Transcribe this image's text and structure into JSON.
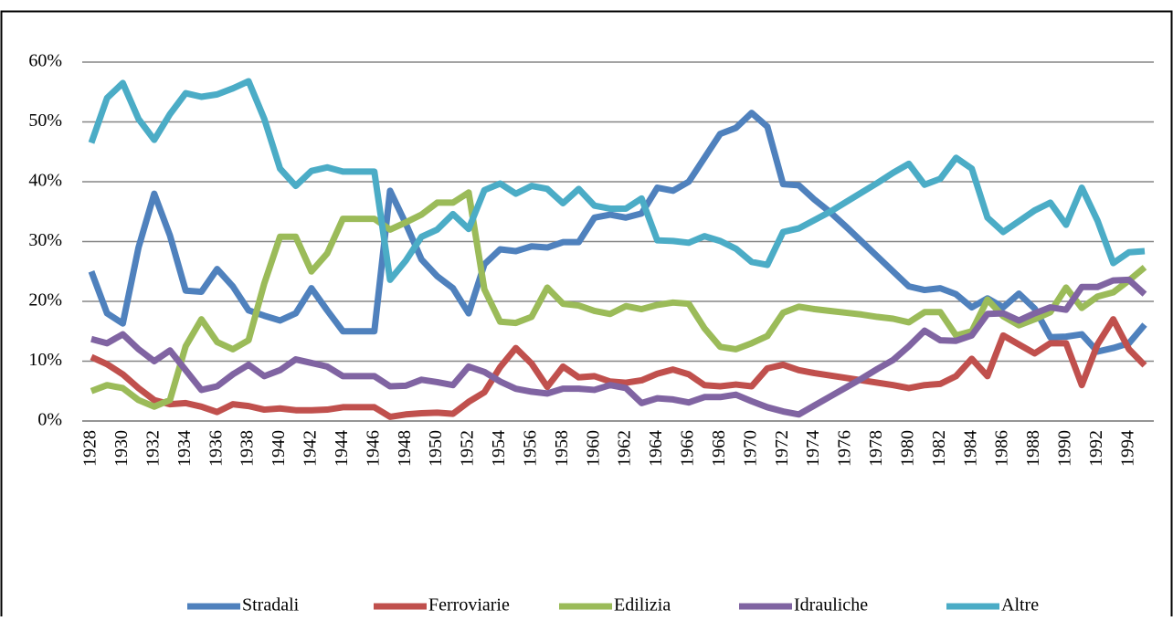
{
  "chart_data": {
    "type": "line",
    "categories": [
      "1928",
      null,
      "1930",
      null,
      "1932",
      null,
      "1934",
      null,
      "1936",
      null,
      "1938",
      null,
      "1940",
      null,
      "1942",
      null,
      "1944",
      null,
      "1946",
      null,
      "1948",
      null,
      "1950",
      null,
      "1952",
      null,
      "1954",
      null,
      "1956",
      null,
      "1958",
      null,
      "1960",
      null,
      "1962",
      null,
      "1964",
      null,
      "1966",
      null,
      "1968",
      null,
      "1970",
      null,
      "1972",
      null,
      "1974",
      null,
      "1976",
      null,
      "1978",
      null,
      "1980",
      null,
      "1982",
      null,
      "1984",
      null,
      "1986",
      null,
      "1988",
      null,
      "1990",
      null,
      "1992",
      null,
      "1994",
      null
    ],
    "series": [
      {
        "name": "Stradali",
        "color": "#4f81bd",
        "values": [
          25,
          18,
          16.3,
          29,
          38,
          31,
          21.8,
          21.6,
          25.4,
          22.5,
          18.5,
          17.6,
          16.8,
          18,
          22.2,
          18.5,
          15,
          15,
          15,
          38.5,
          33,
          27,
          24.2,
          22.2,
          18,
          26.2,
          28.7,
          28.4,
          29.2,
          29,
          29.9,
          29.9,
          34,
          34.5,
          34,
          34.7,
          39,
          38.5,
          40,
          44,
          48,
          49,
          51.5,
          49.2,
          39.6,
          39.4,
          37,
          34.9,
          32.5,
          30,
          27.5,
          25,
          22.5,
          21.9,
          22.2,
          21.2,
          19,
          20.5,
          19,
          21.3,
          18.8,
          14,
          14.1,
          14.5,
          11.6,
          12.2,
          13,
          16.1
        ]
      },
      {
        "name": "Ferroviarie",
        "color": "#c0504d",
        "values": [
          10.7,
          9.5,
          7.8,
          5.5,
          3.5,
          2.8,
          3,
          2.4,
          1.5,
          2.8,
          2.5,
          1.9,
          2.1,
          1.8,
          1.8,
          1.9,
          2.3,
          2.3,
          2.3,
          0.7,
          1.1,
          1.3,
          1.4,
          1.2,
          3.2,
          4.8,
          9,
          12.2,
          9.6,
          5.7,
          9.1,
          7.3,
          7.5,
          6.6,
          6.4,
          6.8,
          7.9,
          8.6,
          7.8,
          6,
          5.8,
          6.1,
          5.8,
          8.8,
          9.4,
          8.5,
          8,
          7.6,
          7.2,
          6.8,
          6.4,
          6,
          5.5,
          6,
          6.2,
          7.5,
          10.4,
          7.5,
          14.3,
          12.8,
          11.3,
          13,
          13,
          6,
          12.8,
          17,
          12,
          9.3
        ]
      },
      {
        "name": "Edilizia",
        "color": "#9bbb59",
        "values": [
          5,
          6,
          5.5,
          3.5,
          2.4,
          3.5,
          12.5,
          17,
          13.2,
          12,
          13.5,
          23,
          30.8,
          30.8,
          25,
          28,
          33.8,
          33.8,
          33.8,
          32,
          33.2,
          34.5,
          36.5,
          36.5,
          38.2,
          22,
          16.6,
          16.4,
          17.4,
          22.3,
          19.6,
          19.3,
          18.4,
          17.9,
          19.2,
          18.7,
          19.4,
          19.8,
          19.6,
          15.5,
          12.4,
          12,
          13,
          14.2,
          18.1,
          19.1,
          18.7,
          18.4,
          18.1,
          17.8,
          17.4,
          17.1,
          16.5,
          18.2,
          18.2,
          14.3,
          15,
          20.3,
          17.5,
          16,
          17,
          18.2,
          22.3,
          18.9,
          20.8,
          21.5,
          23.5,
          25.7
        ]
      },
      {
        "name": "Idrauliche",
        "color": "#8064a2",
        "values": [
          13.7,
          13,
          14.5,
          12,
          10,
          11.8,
          8.5,
          5.2,
          5.8,
          7.8,
          9.4,
          7.5,
          8.5,
          10.3,
          9.7,
          9.1,
          7.5,
          7.5,
          7.5,
          5.8,
          5.9,
          6.9,
          6.5,
          6,
          9.1,
          8.2,
          6.6,
          5.4,
          4.9,
          4.6,
          5.4,
          5.4,
          5.2,
          6,
          5.5,
          3,
          3.8,
          3.6,
          3.1,
          4,
          4,
          4.4,
          3.3,
          2.3,
          1.6,
          1.1,
          2.6,
          4.1,
          5.6,
          7.1,
          8.7,
          10.2,
          12.5,
          15.1,
          13.5,
          13.4,
          14.3,
          17.9,
          18,
          16.8,
          18,
          19,
          18.6,
          22.4,
          22.4,
          23.5,
          23.6,
          21.2
        ]
      },
      {
        "name": "Altre",
        "color": "#4bacc6",
        "values": [
          46.5,
          54,
          56.5,
          50.5,
          47,
          51.3,
          54.8,
          54.2,
          54.6,
          55.6,
          56.8,
          50.5,
          42.2,
          39.3,
          41.8,
          42.4,
          41.7,
          41.7,
          41.7,
          23.6,
          26.8,
          30.8,
          32,
          34.6,
          32.1,
          38.6,
          39.7,
          38,
          39.3,
          38.8,
          36.4,
          38.8,
          36,
          35.5,
          35.5,
          37.2,
          30.2,
          30.1,
          29.8,
          30.9,
          30.1,
          28.8,
          26.6,
          26.1,
          31.6,
          32.2,
          33.6,
          35,
          36.6,
          38.2,
          39.8,
          41.5,
          43,
          39.5,
          40.5,
          44,
          42.2,
          34,
          31.6,
          33.4,
          35.2,
          36.5,
          32.8,
          39,
          33.5,
          26.4,
          28.2,
          28.4
        ]
      }
    ],
    "ylim": [
      0,
      60
    ],
    "yticks": [
      {
        "value": 0,
        "label": "0%"
      },
      {
        "value": 10,
        "label": "10%"
      },
      {
        "value": 20,
        "label": "20%"
      },
      {
        "value": 30,
        "label": "30%"
      },
      {
        "value": 40,
        "label": "40%"
      },
      {
        "value": 50,
        "label": "50%"
      },
      {
        "value": 60,
        "label": "60%"
      }
    ],
    "grid": true,
    "legend": "bottom"
  }
}
